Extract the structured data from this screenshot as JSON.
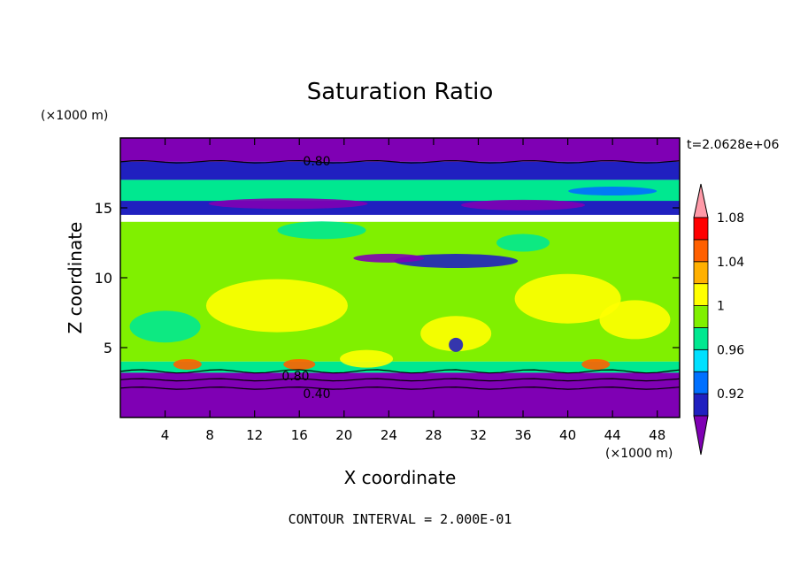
{
  "chart_data": {
    "type": "heatmap",
    "title": "Saturation Ratio",
    "xlabel": "X coordinate",
    "ylabel": "Z coordinate",
    "x_units": "(×1000 m)",
    "y_units": "(×1000 m)",
    "time_label": "t=2.0628e+06",
    "footer": "CONTOUR INTERVAL = 2.000E-01",
    "xlim": [
      0,
      50
    ],
    "ylim": [
      0,
      20
    ],
    "x_ticks": [
      4,
      8,
      12,
      16,
      20,
      24,
      28,
      32,
      36,
      40,
      44,
      48
    ],
    "y_ticks": [
      5,
      10,
      15
    ],
    "colorbar": {
      "labels": [
        "1.08",
        "1.04",
        "1",
        "0.96",
        "0.92"
      ],
      "levels": [
        0.9,
        0.92,
        0.94,
        0.96,
        0.98,
        1.0,
        1.02,
        1.04,
        1.06,
        1.08,
        1.1
      ],
      "colors": [
        "#7f00b4",
        "#2020c0",
        "#0070ff",
        "#00e0ff",
        "#00e890",
        "#80f000",
        "#ffff00",
        "#ffb000",
        "#ff6000",
        "#ff0000",
        "#ff9aa8"
      ]
    },
    "contour_labels": [
      "0.80",
      "0.80",
      "0.40"
    ],
    "bands": [
      {
        "z": [
          18.3,
          20.0
        ],
        "level": 0.9
      },
      {
        "z": [
          17.0,
          18.3
        ],
        "level": 0.92
      },
      {
        "z": [
          15.0,
          17.0
        ],
        "level": 0.98
      },
      {
        "z": [
          14.5,
          15.5
        ],
        "level": 0.92
      },
      {
        "z": [
          4.0,
          14.0
        ],
        "level": 1.0
      },
      {
        "z": [
          3.2,
          4.0
        ],
        "level": 0.98
      },
      {
        "z": [
          0.0,
          3.2
        ],
        "level": 0.9
      }
    ],
    "grid": false
  }
}
